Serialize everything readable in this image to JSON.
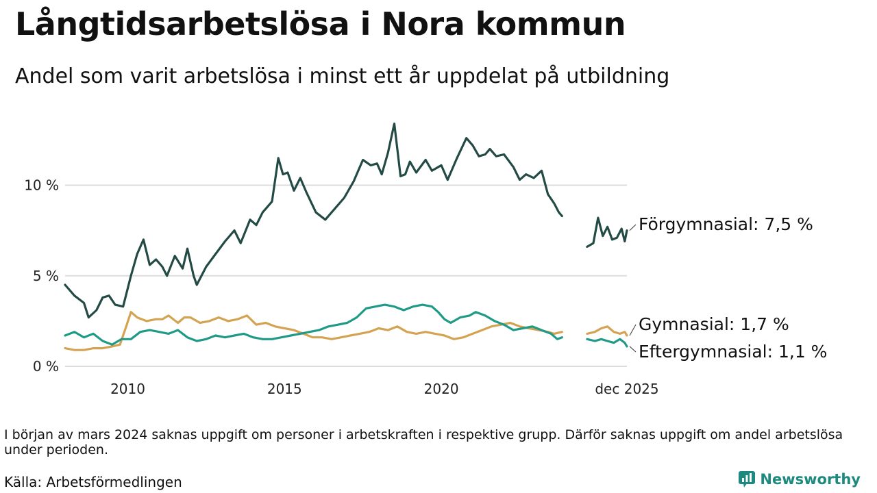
{
  "title": "Långtidsarbetslösa i Nora kommun",
  "subtitle": "Andel som varit arbetslösa i minst ett år uppdelat på utbildning",
  "note": "I början av mars 2024 saknas uppgift om personer i arbetskraften i respektive grupp. Därför saknas uppgift om andel arbetslösa under perioden.",
  "source": "Källa: Arbetsförmedlingen",
  "brand": "Newsworthy",
  "chart_data": {
    "type": "line",
    "title": "Långtidsarbetslösa i Nora kommun",
    "xlim": [
      2008.0,
      2025.92
    ],
    "ylim": [
      0,
      13.8
    ],
    "y_ticks": [
      {
        "value": 0,
        "label": "0 %"
      },
      {
        "value": 5,
        "label": "5 %"
      },
      {
        "value": 10,
        "label": "10 %"
      }
    ],
    "x_ticks": [
      {
        "value": 2010,
        "label": "2010"
      },
      {
        "value": 2015,
        "label": "2015"
      },
      {
        "value": 2020,
        "label": "2020"
      },
      {
        "value": 2025.92,
        "label": "dec 2025"
      }
    ],
    "gap": [
      2023.9,
      2024.6
    ],
    "series": [
      {
        "name": "Förgymnasial",
        "label": "Förgymnasial: 7,5 %",
        "color": "#234a44",
        "points": [
          [
            2008.0,
            4.5
          ],
          [
            2008.3,
            3.9
          ],
          [
            2008.6,
            3.5
          ],
          [
            2008.75,
            2.7
          ],
          [
            2009.0,
            3.1
          ],
          [
            2009.2,
            3.8
          ],
          [
            2009.4,
            3.9
          ],
          [
            2009.6,
            3.4
          ],
          [
            2009.85,
            3.3
          ],
          [
            2010.1,
            5.0
          ],
          [
            2010.3,
            6.2
          ],
          [
            2010.5,
            7.0
          ],
          [
            2010.7,
            5.6
          ],
          [
            2010.9,
            5.9
          ],
          [
            2011.1,
            5.5
          ],
          [
            2011.25,
            5.0
          ],
          [
            2011.5,
            6.1
          ],
          [
            2011.75,
            5.4
          ],
          [
            2011.9,
            6.5
          ],
          [
            2012.1,
            5.0
          ],
          [
            2012.2,
            4.5
          ],
          [
            2012.5,
            5.5
          ],
          [
            2012.8,
            6.2
          ],
          [
            2013.1,
            6.9
          ],
          [
            2013.4,
            7.5
          ],
          [
            2013.6,
            6.8
          ],
          [
            2013.9,
            8.1
          ],
          [
            2014.1,
            7.8
          ],
          [
            2014.3,
            8.5
          ],
          [
            2014.6,
            9.1
          ],
          [
            2014.8,
            11.5
          ],
          [
            2014.95,
            10.6
          ],
          [
            2015.1,
            10.7
          ],
          [
            2015.3,
            9.7
          ],
          [
            2015.5,
            10.4
          ],
          [
            2015.7,
            9.6
          ],
          [
            2016.0,
            8.5
          ],
          [
            2016.3,
            8.1
          ],
          [
            2016.6,
            8.7
          ],
          [
            2016.9,
            9.3
          ],
          [
            2017.2,
            10.2
          ],
          [
            2017.5,
            11.4
          ],
          [
            2017.75,
            11.1
          ],
          [
            2017.95,
            11.2
          ],
          [
            2018.1,
            10.6
          ],
          [
            2018.3,
            11.8
          ],
          [
            2018.5,
            13.4
          ],
          [
            2018.7,
            10.5
          ],
          [
            2018.85,
            10.6
          ],
          [
            2019.0,
            11.3
          ],
          [
            2019.2,
            10.7
          ],
          [
            2019.5,
            11.4
          ],
          [
            2019.7,
            10.8
          ],
          [
            2020.0,
            11.1
          ],
          [
            2020.2,
            10.3
          ],
          [
            2020.5,
            11.5
          ],
          [
            2020.8,
            12.6
          ],
          [
            2021.0,
            12.2
          ],
          [
            2021.2,
            11.6
          ],
          [
            2021.4,
            11.7
          ],
          [
            2021.55,
            12.0
          ],
          [
            2021.75,
            11.6
          ],
          [
            2022.0,
            11.7
          ],
          [
            2022.3,
            11.0
          ],
          [
            2022.5,
            10.3
          ],
          [
            2022.7,
            10.6
          ],
          [
            2022.95,
            10.4
          ],
          [
            2023.2,
            10.8
          ],
          [
            2023.4,
            9.5
          ],
          [
            2023.6,
            9.0
          ],
          [
            2023.75,
            8.5
          ],
          [
            2023.85,
            8.3
          ],
          [
            2024.65,
            6.6
          ],
          [
            2024.85,
            6.8
          ],
          [
            2025.0,
            8.2
          ],
          [
            2025.15,
            7.2
          ],
          [
            2025.3,
            7.7
          ],
          [
            2025.45,
            7.0
          ],
          [
            2025.6,
            7.1
          ],
          [
            2025.75,
            7.6
          ],
          [
            2025.85,
            6.9
          ],
          [
            2025.92,
            7.5
          ]
        ]
      },
      {
        "name": "Gymnasial",
        "label": "Gymnasial: 1,7 %",
        "color": "#d4a352",
        "points": [
          [
            2008.0,
            1.0
          ],
          [
            2008.3,
            0.9
          ],
          [
            2008.6,
            0.9
          ],
          [
            2008.9,
            1.0
          ],
          [
            2009.2,
            1.0
          ],
          [
            2009.5,
            1.1
          ],
          [
            2009.75,
            1.2
          ],
          [
            2009.95,
            2.2
          ],
          [
            2010.1,
            3.0
          ],
          [
            2010.3,
            2.7
          ],
          [
            2010.6,
            2.5
          ],
          [
            2010.9,
            2.6
          ],
          [
            2011.1,
            2.6
          ],
          [
            2011.3,
            2.8
          ],
          [
            2011.6,
            2.4
          ],
          [
            2011.8,
            2.7
          ],
          [
            2012.0,
            2.7
          ],
          [
            2012.3,
            2.4
          ],
          [
            2012.6,
            2.5
          ],
          [
            2012.9,
            2.7
          ],
          [
            2013.2,
            2.5
          ],
          [
            2013.5,
            2.6
          ],
          [
            2013.8,
            2.8
          ],
          [
            2014.1,
            2.3
          ],
          [
            2014.4,
            2.4
          ],
          [
            2014.7,
            2.2
          ],
          [
            2015.0,
            2.1
          ],
          [
            2015.3,
            2.0
          ],
          [
            2015.6,
            1.8
          ],
          [
            2015.9,
            1.6
          ],
          [
            2016.2,
            1.6
          ],
          [
            2016.5,
            1.5
          ],
          [
            2016.8,
            1.6
          ],
          [
            2017.1,
            1.7
          ],
          [
            2017.4,
            1.8
          ],
          [
            2017.7,
            1.9
          ],
          [
            2018.0,
            2.1
          ],
          [
            2018.3,
            2.0
          ],
          [
            2018.6,
            2.2
          ],
          [
            2018.9,
            1.9
          ],
          [
            2019.2,
            1.8
          ],
          [
            2019.5,
            1.9
          ],
          [
            2019.8,
            1.8
          ],
          [
            2020.1,
            1.7
          ],
          [
            2020.4,
            1.5
          ],
          [
            2020.7,
            1.6
          ],
          [
            2021.0,
            1.8
          ],
          [
            2021.3,
            2.0
          ],
          [
            2021.6,
            2.2
          ],
          [
            2021.9,
            2.3
          ],
          [
            2022.2,
            2.4
          ],
          [
            2022.5,
            2.2
          ],
          [
            2022.8,
            2.1
          ],
          [
            2023.1,
            2.0
          ],
          [
            2023.4,
            1.9
          ],
          [
            2023.6,
            1.8
          ],
          [
            2023.85,
            1.9
          ],
          [
            2024.65,
            1.8
          ],
          [
            2024.9,
            1.9
          ],
          [
            2025.1,
            2.1
          ],
          [
            2025.3,
            2.2
          ],
          [
            2025.5,
            1.9
          ],
          [
            2025.7,
            1.8
          ],
          [
            2025.85,
            1.9
          ],
          [
            2025.92,
            1.7
          ]
        ]
      },
      {
        "name": "Eftergymnasial",
        "label": "Eftergymnasial: 1,1 %",
        "color": "#1f9a86",
        "points": [
          [
            2008.0,
            1.7
          ],
          [
            2008.3,
            1.9
          ],
          [
            2008.6,
            1.6
          ],
          [
            2008.9,
            1.8
          ],
          [
            2009.2,
            1.4
          ],
          [
            2009.5,
            1.2
          ],
          [
            2009.8,
            1.5
          ],
          [
            2010.1,
            1.5
          ],
          [
            2010.4,
            1.9
          ],
          [
            2010.7,
            2.0
          ],
          [
            2011.0,
            1.9
          ],
          [
            2011.3,
            1.8
          ],
          [
            2011.6,
            2.0
          ],
          [
            2011.9,
            1.6
          ],
          [
            2012.2,
            1.4
          ],
          [
            2012.5,
            1.5
          ],
          [
            2012.8,
            1.7
          ],
          [
            2013.1,
            1.6
          ],
          [
            2013.4,
            1.7
          ],
          [
            2013.7,
            1.8
          ],
          [
            2014.0,
            1.6
          ],
          [
            2014.3,
            1.5
          ],
          [
            2014.6,
            1.5
          ],
          [
            2014.9,
            1.6
          ],
          [
            2015.2,
            1.7
          ],
          [
            2015.5,
            1.8
          ],
          [
            2015.8,
            1.9
          ],
          [
            2016.1,
            2.0
          ],
          [
            2016.4,
            2.2
          ],
          [
            2016.7,
            2.3
          ],
          [
            2017.0,
            2.4
          ],
          [
            2017.3,
            2.7
          ],
          [
            2017.6,
            3.2
          ],
          [
            2017.9,
            3.3
          ],
          [
            2018.2,
            3.4
          ],
          [
            2018.5,
            3.3
          ],
          [
            2018.8,
            3.1
          ],
          [
            2019.1,
            3.3
          ],
          [
            2019.4,
            3.4
          ],
          [
            2019.7,
            3.3
          ],
          [
            2019.9,
            3.0
          ],
          [
            2020.1,
            2.6
          ],
          [
            2020.3,
            2.4
          ],
          [
            2020.6,
            2.7
          ],
          [
            2020.9,
            2.8
          ],
          [
            2021.1,
            3.0
          ],
          [
            2021.4,
            2.8
          ],
          [
            2021.7,
            2.5
          ],
          [
            2022.0,
            2.3
          ],
          [
            2022.3,
            2.0
          ],
          [
            2022.6,
            2.1
          ],
          [
            2022.9,
            2.2
          ],
          [
            2023.2,
            2.0
          ],
          [
            2023.5,
            1.8
          ],
          [
            2023.7,
            1.5
          ],
          [
            2023.85,
            1.6
          ],
          [
            2024.65,
            1.5
          ],
          [
            2024.9,
            1.4
          ],
          [
            2025.1,
            1.5
          ],
          [
            2025.3,
            1.4
          ],
          [
            2025.5,
            1.3
          ],
          [
            2025.7,
            1.5
          ],
          [
            2025.85,
            1.3
          ],
          [
            2025.92,
            1.1
          ]
        ]
      }
    ]
  }
}
